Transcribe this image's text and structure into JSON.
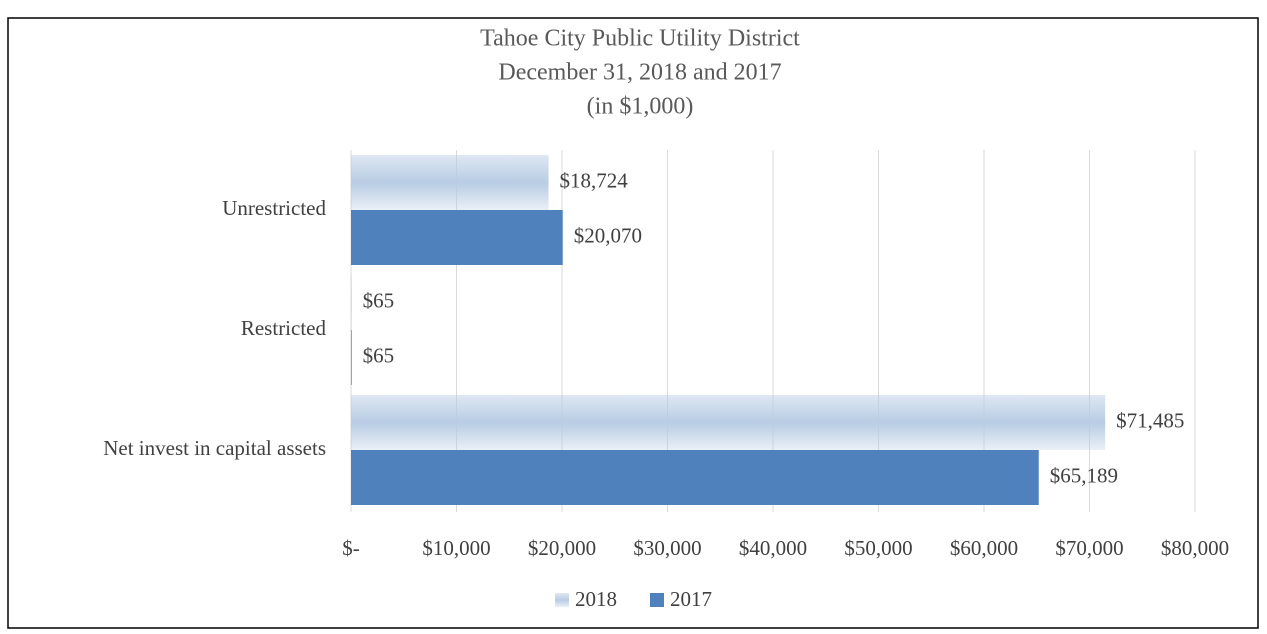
{
  "chart_data": {
    "type": "hbar",
    "title": "Tahoe City Public Utility District",
    "subtitle": "December 31, 2018 and 2017",
    "unit_note": "(in $1,000)",
    "categories": [
      "Unrestricted",
      "Restricted",
      "Net invest in capital assets"
    ],
    "series": [
      {
        "name": "2018",
        "color": "#b8cce4",
        "values": [
          18724,
          65,
          71485
        ],
        "value_labels": [
          "$18,724",
          "$65",
          "$71,485"
        ]
      },
      {
        "name": "2017",
        "color": "#4f81bd",
        "values": [
          20070,
          65,
          65189
        ],
        "value_labels": [
          "$20,070",
          "$65",
          "$65,189"
        ]
      }
    ],
    "xlim": [
      0,
      80000
    ],
    "xticks": [
      {
        "value": 0,
        "label": "$-"
      },
      {
        "value": 10000,
        "label": "$10,000"
      },
      {
        "value": 20000,
        "label": "$20,000"
      },
      {
        "value": 30000,
        "label": "$30,000"
      },
      {
        "value": 40000,
        "label": "$40,000"
      },
      {
        "value": 50000,
        "label": "$50,000"
      },
      {
        "value": 60000,
        "label": "$60,000"
      },
      {
        "value": 70000,
        "label": "$70,000"
      },
      {
        "value": 80000,
        "label": "$80,000"
      }
    ],
    "grid": true,
    "legend": "bottom"
  }
}
